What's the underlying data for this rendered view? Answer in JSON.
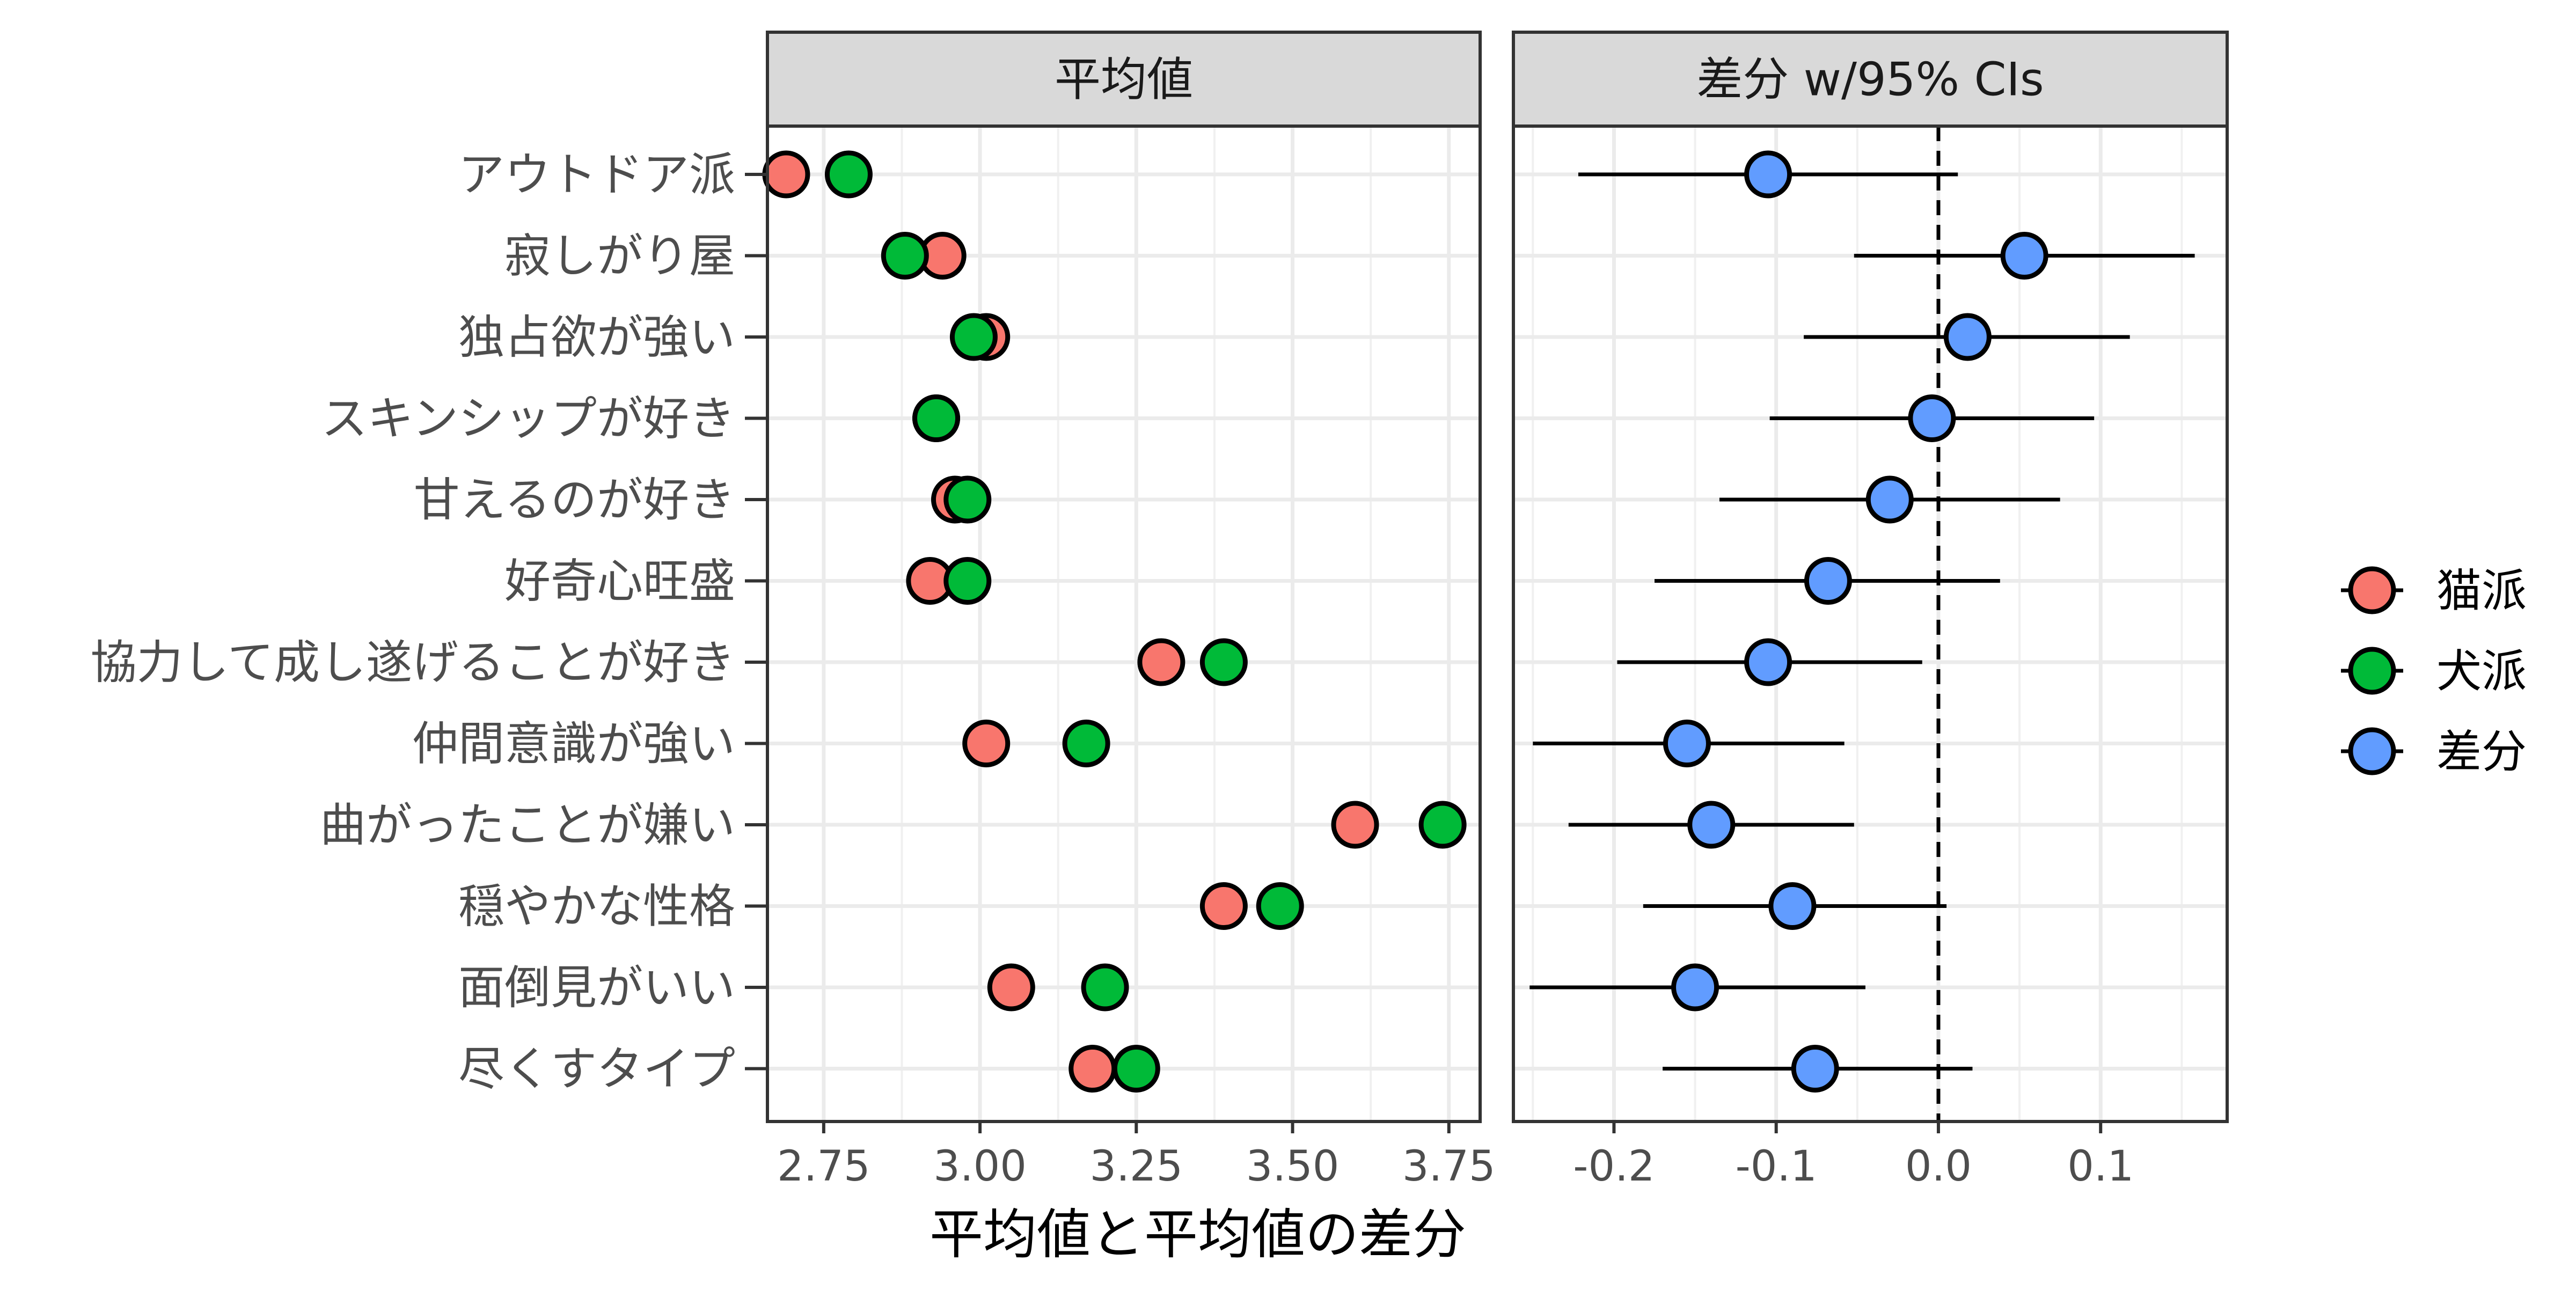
{
  "chart_data": [
    {
      "type": "scatter",
      "panel_title": "平均値",
      "categories": [
        "アウトドア派",
        "寂しがり屋",
        "独占欲が強い",
        "スキンシップが好き",
        "甘えるのが好き",
        "好奇心旺盛",
        "協力して成し遂げることが好き",
        "仲間意識が強い",
        "曲がったことが嫌い",
        "穏やかな性格",
        "面倒見がいい",
        "尽くすタイプ"
      ],
      "series": [
        {
          "name": "猫派",
          "color": "#F8766D",
          "values": [
            2.69,
            2.94,
            3.01,
            2.93,
            2.96,
            2.92,
            3.29,
            3.01,
            3.6,
            3.39,
            3.05,
            3.18
          ]
        },
        {
          "name": "犬派",
          "color": "#00BA38",
          "values": [
            2.79,
            2.88,
            2.99,
            2.93,
            2.98,
            2.98,
            3.39,
            3.17,
            3.74,
            3.48,
            3.2,
            3.25
          ]
        }
      ],
      "xlim": [
        2.66,
        3.8
      ],
      "x_ticks": [
        2.75,
        3.0,
        3.25,
        3.5,
        3.75
      ],
      "x_tick_labels": [
        "2.75",
        "3.00",
        "3.25",
        "3.50",
        "3.75"
      ],
      "grid": true
    },
    {
      "type": "scatter",
      "panel_title": "差分 w/95% CIs",
      "categories": [
        "アウトドア派",
        "寂しがり屋",
        "独占欲が強い",
        "スキンシップが好き",
        "甘えるのが好き",
        "好奇心旺盛",
        "協力して成し遂げることが好き",
        "仲間意識が強い",
        "曲がったことが嫌い",
        "穏やかな性格",
        "面倒見がいい",
        "尽くすタイプ"
      ],
      "series": [
        {
          "name": "差分",
          "color": "#619CFF",
          "values": [
            -0.105,
            0.053,
            0.018,
            -0.004,
            -0.03,
            -0.068,
            -0.105,
            -0.155,
            -0.14,
            -0.09,
            -0.15,
            -0.076
          ],
          "ci_low": [
            -0.222,
            -0.052,
            -0.083,
            -0.104,
            -0.135,
            -0.175,
            -0.198,
            -0.25,
            -0.228,
            -0.182,
            -0.252,
            -0.17
          ],
          "ci_high": [
            0.012,
            0.158,
            0.118,
            0.096,
            0.075,
            0.038,
            -0.01,
            -0.058,
            -0.052,
            0.005,
            -0.045,
            0.021
          ]
        }
      ],
      "reference_line": 0.0,
      "xlim": [
        -0.262,
        0.178
      ],
      "x_ticks": [
        -0.2,
        -0.1,
        0.0,
        0.1
      ],
      "x_tick_labels": [
        "-0.2",
        "-0.1",
        "0.0",
        "0.1"
      ],
      "grid": true
    }
  ],
  "xlabel": "平均値と平均値の差分",
  "legend": {
    "position": "right",
    "items": [
      {
        "label": "猫派",
        "color": "#F8766D"
      },
      {
        "label": "犬派",
        "color": "#00BA38"
      },
      {
        "label": "差分",
        "color": "#619CFF"
      }
    ]
  }
}
